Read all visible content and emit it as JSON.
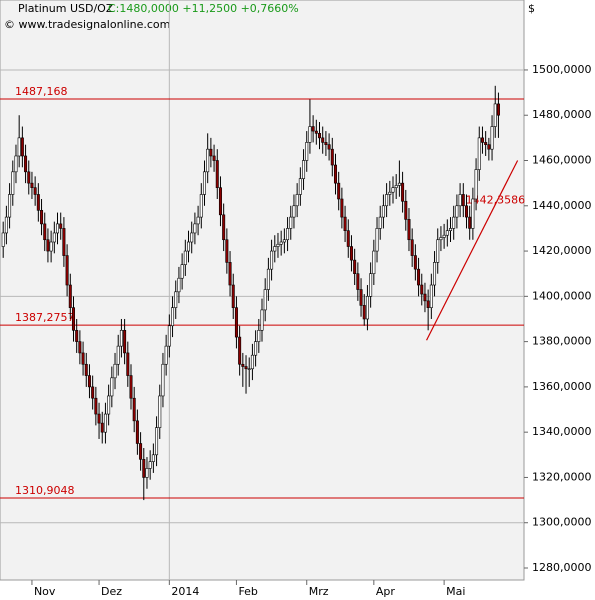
{
  "chart_data": {
    "type": "candlestick",
    "title": "Platinum USD/OZ",
    "quote": "C:1480,0000 +11,2500 +0,7660%",
    "source": "© www.tradesignalonline.com",
    "y_unit": "$",
    "xlim": [
      -1,
      163
    ],
    "xticks": [
      {
        "value": 9,
        "label": "Nov"
      },
      {
        "value": 30,
        "label": "Dez"
      },
      {
        "value": 52,
        "label": "2014"
      },
      {
        "value": 73,
        "label": "Feb"
      },
      {
        "value": 95,
        "label": "Mrz"
      },
      {
        "value": 116,
        "label": "Apr"
      },
      {
        "value": 138,
        "label": "Mai"
      }
    ],
    "ylim": [
      1274.7,
      1530.9
    ],
    "yticks": [
      {
        "value": 1280,
        "label": "1280,0000"
      },
      {
        "value": 1300,
        "label": "1300,0000"
      },
      {
        "value": 1320,
        "label": "1320,0000"
      },
      {
        "value": 1340,
        "label": "1340,0000"
      },
      {
        "value": 1360,
        "label": "1360,0000"
      },
      {
        "value": 1380,
        "label": "1380,0000"
      },
      {
        "value": 1400,
        "label": "1400,0000"
      },
      {
        "value": 1420,
        "label": "1420,0000"
      },
      {
        "value": 1440,
        "label": "1440,0000"
      },
      {
        "value": 1460,
        "label": "1460,0000"
      },
      {
        "value": 1480,
        "label": "1480,0000"
      },
      {
        "value": 1500,
        "label": "1500,0000"
      }
    ],
    "up_color": "#ffffff",
    "down_color": "#8b0000",
    "level_color": "#cc0000",
    "levels": [
      {
        "value": 1487.168,
        "label": "1487,168"
      },
      {
        "value": 1387.2757,
        "label": "1387,2757"
      },
      {
        "value": 1310.9048,
        "label": "1310,9048"
      }
    ],
    "trendline": {
      "x": [
        132.5,
        161
      ],
      "y": [
        1380.6,
        1460
      ],
      "label": {
        "value": 1442.3586,
        "label": "1442,3586"
      }
    },
    "open": [
      1422,
      1428,
      1435,
      1445,
      1455,
      1462,
      1470,
      1462,
      1455,
      1450,
      1448,
      1445,
      1438,
      1432,
      1425,
      1420,
      1424,
      1428,
      1432,
      1430,
      1418,
      1405,
      1395,
      1385,
      1380,
      1375,
      1370,
      1365,
      1360,
      1355,
      1348,
      1344,
      1340,
      1348,
      1356,
      1364,
      1370,
      1378,
      1385,
      1375,
      1365,
      1355,
      1345,
      1335,
      1328,
      1320,
      1324,
      1327,
      1330,
      1342,
      1356,
      1370,
      1378,
      1387,
      1395,
      1402,
      1408,
      1414,
      1420,
      1424,
      1428,
      1432,
      1435,
      1445,
      1455,
      1465,
      1462,
      1460,
      1448,
      1436,
      1425,
      1415,
      1405,
      1395,
      1382,
      1370,
      1369,
      1368,
      1368,
      1374,
      1380,
      1385,
      1394,
      1403,
      1412,
      1420,
      1422,
      1423,
      1424,
      1425,
      1430,
      1435,
      1440,
      1445,
      1452,
      1460,
      1468,
      1475,
      1473,
      1472,
      1470,
      1468,
      1467,
      1465,
      1458,
      1450,
      1443,
      1435,
      1429,
      1422,
      1416,
      1410,
      1403,
      1396,
      1390,
      1400,
      1410,
      1420,
      1430,
      1435,
      1440,
      1445,
      1446,
      1448,
      1449,
      1450,
      1442,
      1434,
      1425,
      1418,
      1412,
      1405,
      1401,
      1398,
      1395,
      1405,
      1415,
      1425,
      1426,
      1427,
      1429,
      1430,
      1435,
      1440,
      1445,
      1440,
      1435,
      1430,
      1443,
      1456,
      1470,
      1468,
      1467,
      1465,
      1475,
      1485
    ],
    "high": [
      1433,
      1440,
      1450,
      1460,
      1467,
      1480,
      1475,
      1467,
      1460,
      1455,
      1453,
      1450,
      1443,
      1437,
      1430,
      1429,
      1433,
      1437,
      1437,
      1435,
      1423,
      1410,
      1400,
      1390,
      1385,
      1380,
      1375,
      1370,
      1365,
      1360,
      1353,
      1349,
      1353,
      1361,
      1369,
      1375,
      1383,
      1390,
      1390,
      1380,
      1370,
      1360,
      1350,
      1340,
      1333,
      1329,
      1332,
      1335,
      1347,
      1361,
      1375,
      1383,
      1392,
      1400,
      1407,
      1413,
      1419,
      1425,
      1429,
      1433,
      1437,
      1440,
      1450,
      1460,
      1472,
      1470,
      1467,
      1465,
      1453,
      1441,
      1430,
      1420,
      1410,
      1400,
      1387,
      1375,
      1374,
      1373,
      1379,
      1385,
      1390,
      1399,
      1408,
      1417,
      1425,
      1427,
      1428,
      1429,
      1430,
      1435,
      1440,
      1445,
      1450,
      1457,
      1465,
      1473,
      1487,
      1480,
      1478,
      1477,
      1475,
      1473,
      1472,
      1470,
      1463,
      1455,
      1448,
      1440,
      1434,
      1427,
      1421,
      1415,
      1408,
      1401,
      1405,
      1415,
      1425,
      1435,
      1440,
      1445,
      1450,
      1451,
      1453,
      1454,
      1460,
      1455,
      1447,
      1439,
      1430,
      1423,
      1417,
      1410,
      1406,
      1403,
      1410,
      1420,
      1430,
      1431,
      1432,
      1434,
      1435,
      1440,
      1445,
      1450,
      1450,
      1445,
      1440,
      1448,
      1461,
      1475,
      1475,
      1473,
      1470,
      1480,
      1493,
      1490
    ],
    "low": [
      1417,
      1423,
      1430,
      1440,
      1450,
      1457,
      1457,
      1450,
      1445,
      1443,
      1440,
      1433,
      1427,
      1420,
      1415,
      1415,
      1419,
      1423,
      1425,
      1413,
      1400,
      1390,
      1380,
      1375,
      1370,
      1365,
      1360,
      1355,
      1350,
      1343,
      1337,
      1335,
      1335,
      1343,
      1351,
      1359,
      1365,
      1373,
      1370,
      1360,
      1350,
      1340,
      1330,
      1323,
      1310,
      1315,
      1319,
      1322,
      1325,
      1337,
      1351,
      1365,
      1373,
      1382,
      1390,
      1397,
      1403,
      1409,
      1415,
      1419,
      1423,
      1427,
      1430,
      1440,
      1450,
      1457,
      1455,
      1443,
      1431,
      1420,
      1410,
      1400,
      1390,
      1377,
      1365,
      1360,
      1357,
      1360,
      1363,
      1369,
      1375,
      1380,
      1389,
      1398,
      1407,
      1415,
      1417,
      1418,
      1419,
      1420,
      1425,
      1430,
      1435,
      1440,
      1447,
      1455,
      1463,
      1468,
      1467,
      1465,
      1463,
      1462,
      1460,
      1453,
      1445,
      1438,
      1430,
      1424,
      1417,
      1411,
      1405,
      1398,
      1391,
      1387,
      1385,
      1395,
      1405,
      1415,
      1425,
      1430,
      1435,
      1440,
      1441,
      1443,
      1444,
      1437,
      1429,
      1420,
      1413,
      1407,
      1400,
      1396,
      1393,
      1385,
      1390,
      1400,
      1410,
      1420,
      1421,
      1422,
      1424,
      1425,
      1430,
      1435,
      1435,
      1430,
      1425,
      1425,
      1438,
      1451,
      1463,
      1462,
      1460,
      1460,
      1470,
      1470
    ],
    "close": [
      1428,
      1435,
      1445,
      1455,
      1462,
      1470,
      1462,
      1455,
      1450,
      1448,
      1445,
      1438,
      1432,
      1425,
      1420,
      1424,
      1428,
      1432,
      1430,
      1418,
      1405,
      1395,
      1385,
      1380,
      1375,
      1370,
      1365,
      1360,
      1355,
      1348,
      1344,
      1340,
      1348,
      1356,
      1364,
      1370,
      1378,
      1385,
      1375,
      1365,
      1355,
      1345,
      1335,
      1328,
      1320,
      1324,
      1327,
      1330,
      1342,
      1356,
      1370,
      1378,
      1387,
      1395,
      1402,
      1408,
      1414,
      1420,
      1424,
      1428,
      1432,
      1435,
      1445,
      1455,
      1465,
      1462,
      1460,
      1448,
      1436,
      1425,
      1415,
      1405,
      1395,
      1382,
      1370,
      1369,
      1368,
      1368,
      1374,
      1380,
      1385,
      1394,
      1403,
      1412,
      1420,
      1422,
      1423,
      1424,
      1425,
      1430,
      1435,
      1440,
      1445,
      1452,
      1460,
      1468,
      1475,
      1473,
      1472,
      1470,
      1468,
      1467,
      1465,
      1458,
      1450,
      1443,
      1435,
      1429,
      1422,
      1416,
      1410,
      1403,
      1396,
      1390,
      1400,
      1410,
      1420,
      1430,
      1435,
      1440,
      1445,
      1446,
      1448,
      1449,
      1450,
      1442,
      1434,
      1425,
      1418,
      1412,
      1405,
      1401,
      1398,
      1395,
      1405,
      1415,
      1425,
      1426,
      1427,
      1429,
      1430,
      1435,
      1440,
      1445,
      1440,
      1435,
      1430,
      1443,
      1456,
      1470,
      1468,
      1467,
      1465,
      1475,
      1485,
      1480
    ]
  }
}
